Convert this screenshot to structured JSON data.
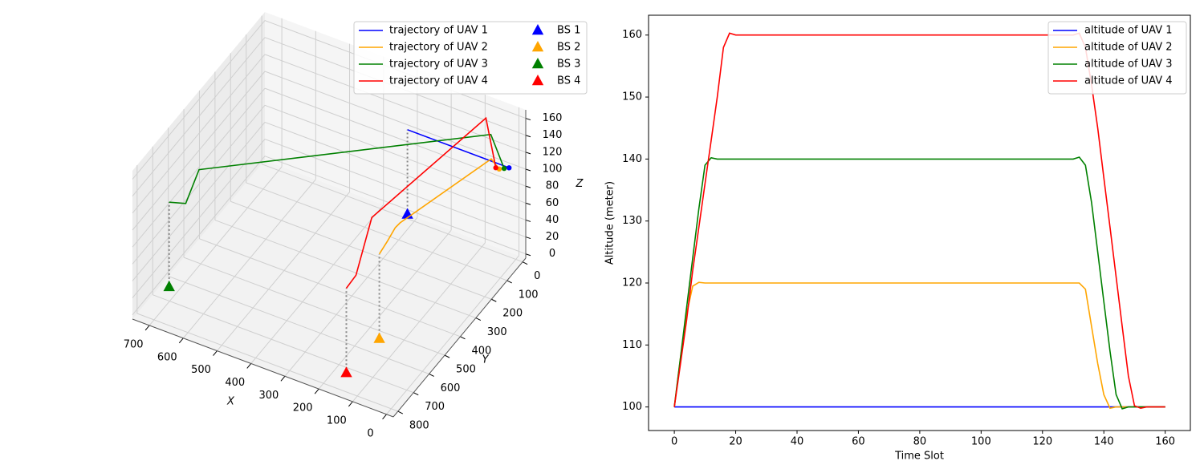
{
  "chart_data": [
    {
      "type": "line3d",
      "xlabel": "X",
      "ylabel": "Y",
      "zlabel": "Z",
      "xlim": [
        -20,
        750
      ],
      "ylim": [
        -20,
        830
      ],
      "zlim": [
        -5,
        170
      ],
      "xticks": [
        0,
        100,
        200,
        300,
        400,
        500,
        600,
        700
      ],
      "yticks": [
        0,
        100,
        200,
        300,
        400,
        500,
        600,
        700,
        800
      ],
      "zticks": [
        0,
        20,
        40,
        60,
        80,
        100,
        120,
        140,
        160
      ],
      "grid": true,
      "legend": "upper right",
      "legend_columns": 2,
      "series": [
        {
          "name": "trajectory of UAV 1",
          "color": "#0000ff",
          "x": [
            320,
            20
          ],
          "y": [
            0,
            0
          ],
          "z": [
            100,
            100
          ]
        },
        {
          "name": "trajectory of UAV 2",
          "color": "#ffa500",
          "x": [
            150,
            140,
            135,
            130,
            45,
            40
          ],
          "y": [
            550,
            520,
            480,
            460,
            60,
            20
          ],
          "z": [
            100,
            110,
            118,
            120,
            120,
            100
          ]
        },
        {
          "name": "trajectory of UAV 3",
          "color": "#008000",
          "x": [
            720,
            680,
            650,
            60,
            30
          ],
          "y": [
            660,
            640,
            620,
            30,
            10
          ],
          "z": [
            100,
            100,
            140,
            140,
            100
          ]
        },
        {
          "name": "trajectory of UAV 4",
          "color": "#ff0000",
          "x": [
            160,
            150,
            140,
            70,
            50
          ],
          "y": [
            740,
            700,
            620,
            40,
            20
          ],
          "z": [
            100,
            108,
            160,
            160,
            100
          ]
        }
      ],
      "stations": [
        {
          "name": "BS 1",
          "color": "#0000ff",
          "x": 320,
          "y": 0,
          "z": 0
        },
        {
          "name": "BS 2",
          "color": "#ffa500",
          "x": 150,
          "y": 550,
          "z": 0
        },
        {
          "name": "BS 3",
          "color": "#008000",
          "x": 720,
          "y": 660,
          "z": 0
        },
        {
          "name": "BS 4",
          "color": "#ff0000",
          "x": 160,
          "y": 740,
          "z": 0
        }
      ]
    },
    {
      "type": "line",
      "xlabel": "Time Slot",
      "ylabel": "Altitude (meter)",
      "xlim": [
        -8.4,
        168.2
      ],
      "ylim": [
        96.2,
        163.2
      ],
      "xticks": [
        0,
        20,
        40,
        60,
        80,
        100,
        120,
        140,
        160
      ],
      "yticks": [
        100,
        110,
        120,
        130,
        140,
        150,
        160
      ],
      "legend": "upper right",
      "x": [
        0,
        2,
        4,
        6,
        8,
        10,
        12,
        14,
        16,
        18,
        20,
        30,
        40,
        50,
        60,
        70,
        80,
        90,
        100,
        110,
        120,
        130,
        132,
        134,
        136,
        138,
        140,
        142,
        144,
        146,
        148,
        150,
        152,
        154,
        156,
        158,
        160
      ],
      "series": [
        {
          "name": "altitude of UAV 1",
          "color": "#0000ff",
          "values": [
            100,
            100,
            100,
            100,
            100,
            100,
            100,
            100,
            100,
            100,
            100,
            100,
            100,
            100,
            100,
            100,
            100,
            100,
            100,
            100,
            100,
            100,
            100,
            100,
            100,
            100,
            100,
            100,
            100,
            100,
            100,
            100,
            100,
            100,
            100,
            100,
            100
          ]
        },
        {
          "name": "altitude of UAV 2",
          "color": "#ffa500",
          "values": [
            100,
            108,
            115,
            119.5,
            120.1,
            120,
            120,
            120,
            120,
            120,
            120,
            120,
            120,
            120,
            120,
            120,
            120,
            120,
            120,
            120,
            120,
            120,
            120,
            119,
            113,
            107,
            102,
            99.8,
            100,
            100,
            100,
            100,
            100,
            100,
            100,
            100,
            100
          ]
        },
        {
          "name": "altitude of UAV 3",
          "color": "#008000",
          "values": [
            100,
            108,
            116,
            124,
            132,
            139,
            140.2,
            140,
            140,
            140,
            140,
            140,
            140,
            140,
            140,
            140,
            140,
            140,
            140,
            140,
            140,
            140,
            140.3,
            139,
            133,
            125,
            117,
            109,
            102,
            99.7,
            100,
            100,
            100,
            100,
            100,
            100,
            100
          ]
        },
        {
          "name": "altitude of UAV 4",
          "color": "#ff0000",
          "values": [
            100,
            107,
            114,
            122,
            129,
            136,
            143,
            150,
            158,
            160.3,
            160,
            160,
            160,
            160,
            160,
            160,
            160,
            160,
            160,
            160,
            160,
            160,
            160.3,
            158,
            152,
            145,
            137,
            129,
            121,
            113,
            105,
            100.2,
            99.8,
            100,
            100,
            100,
            100
          ]
        }
      ]
    }
  ]
}
